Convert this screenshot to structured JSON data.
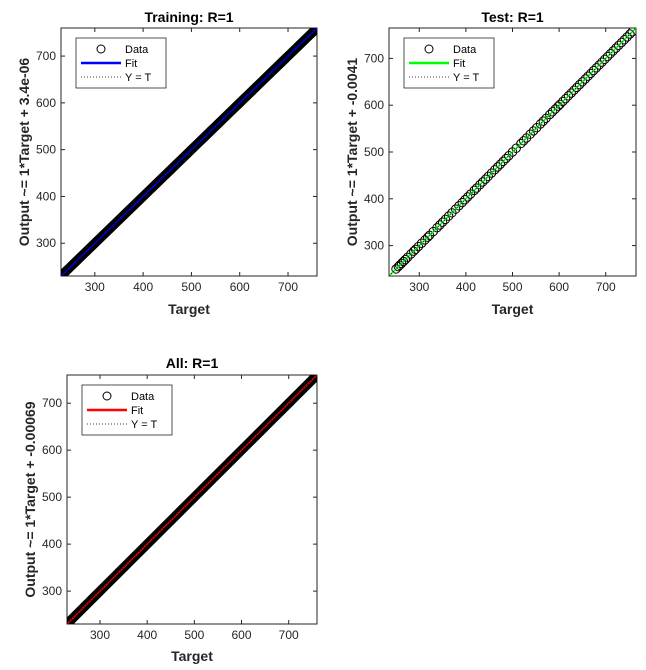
{
  "chart_data": [
    {
      "type": "scatter",
      "title": "Training: R=1",
      "xlabel": "Target",
      "ylabel": "Output ~= 1*Target + 3.4e-06",
      "xlim": [
        230,
        760
      ],
      "ylim": [
        230,
        760
      ],
      "xticks": [
        300,
        400,
        500,
        600,
        700
      ],
      "yticks": [
        300,
        400,
        500,
        600,
        700
      ],
      "grid": false,
      "legend_position": "top-left",
      "fit_color": "#0000ff",
      "legend": [
        "Data",
        "Fit",
        "Y = T"
      ],
      "series": [
        {
          "name": "Data",
          "kind": "markers",
          "marker": "open-circle",
          "color": "#000000",
          "x_range": [
            232,
            758
          ],
          "dense": true
        },
        {
          "name": "Fit",
          "kind": "line",
          "slope": 1,
          "intercept": 3.4e-06
        },
        {
          "name": "Y = T",
          "kind": "dotted-line",
          "slope": 1,
          "intercept": 0
        }
      ]
    },
    {
      "type": "scatter",
      "title": "Test: R=1",
      "xlabel": "Target",
      "ylabel": "Output ~= 1*Target + -0.0041",
      "xlim": [
        235,
        765
      ],
      "ylim": [
        235,
        765
      ],
      "xticks": [
        300,
        400,
        500,
        600,
        700
      ],
      "yticks": [
        300,
        400,
        500,
        600,
        700
      ],
      "grid": false,
      "legend_position": "top-left",
      "fit_color": "#00ff00",
      "legend": [
        "Data",
        "Fit",
        "Y = T"
      ],
      "series": [
        {
          "name": "Data",
          "kind": "markers",
          "marker": "open-circle",
          "color": "#000000",
          "x": [
            250,
            255,
            258,
            262,
            266,
            270,
            275,
            282,
            288,
            292,
            298,
            305,
            312,
            318,
            322,
            330,
            338,
            344,
            350,
            356,
            363,
            370,
            378,
            385,
            392,
            398,
            404,
            410,
            418,
            423,
            430,
            436,
            442,
            448,
            455,
            462,
            468,
            474,
            480,
            486,
            492,
            500,
            508,
            518,
            524,
            530,
            538,
            545,
            552,
            560,
            566,
            572,
            580,
            586,
            592,
            598,
            602,
            608,
            614,
            620,
            626,
            632,
            638,
            644,
            650,
            656,
            662,
            668,
            674,
            680,
            686,
            692,
            698,
            704,
            710,
            716,
            722,
            728,
            734,
            740,
            746,
            752,
            757
          ]
        },
        {
          "name": "Fit",
          "kind": "line",
          "slope": 1,
          "intercept": -0.0041
        },
        {
          "name": "Y = T",
          "kind": "dotted-line",
          "slope": 1,
          "intercept": 0
        }
      ]
    },
    {
      "type": "scatter",
      "title": "All: R=1",
      "xlabel": "Target",
      "ylabel": "Output ~= 1*Target + -0.00069",
      "xlim": [
        230,
        760
      ],
      "ylim": [
        230,
        760
      ],
      "xticks": [
        300,
        400,
        500,
        600,
        700
      ],
      "yticks": [
        300,
        400,
        500,
        600,
        700
      ],
      "grid": false,
      "legend_position": "top-left",
      "fit_color": "#ff0000",
      "legend": [
        "Data",
        "Fit",
        "Y = T"
      ],
      "series": [
        {
          "name": "Data",
          "kind": "markers",
          "marker": "open-circle",
          "color": "#000000",
          "x_range": [
            232,
            758
          ],
          "dense": true
        },
        {
          "name": "Fit",
          "kind": "line",
          "slope": 1,
          "intercept": -0.00069
        },
        {
          "name": "Y = T",
          "kind": "dotted-line",
          "slope": 1,
          "intercept": 0
        }
      ]
    }
  ]
}
